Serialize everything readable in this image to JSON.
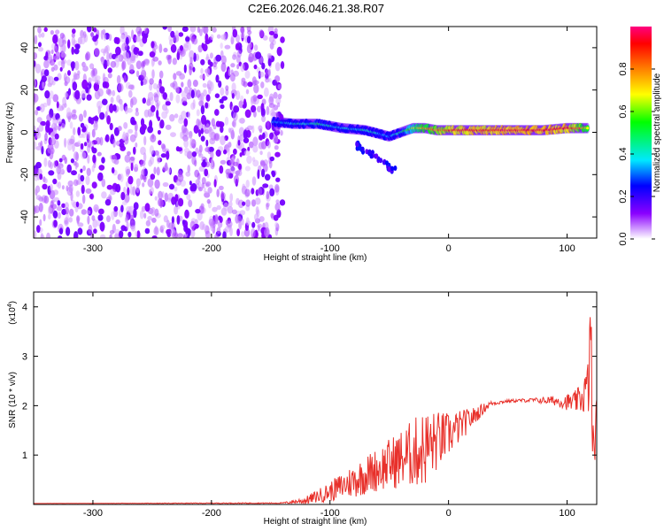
{
  "title": "C2E6.2026.046.21.38.R07",
  "chart_data": [
    {
      "type": "heatmap",
      "name": "spectrogram",
      "xlabel": "Height of straight line (km)",
      "ylabel": "Frequency (Hz)",
      "xlim": [
        -350,
        125
      ],
      "ylim": [
        -50,
        50
      ],
      "xticks": [
        -300,
        -200,
        -100,
        0,
        100
      ],
      "yticks": [
        -40,
        -20,
        0,
        20,
        40
      ],
      "colorbar": {
        "label": "Normalized spectral amplitude",
        "range": [
          0,
          1
        ],
        "ticks": [
          0.0,
          0.2,
          0.4,
          0.6,
          0.8
        ],
        "tick_labels": [
          "0.0",
          "0.2",
          "0.4",
          "0.6",
          "0.8"
        ],
        "colors": [
          "#ffffff",
          "#8a00ff",
          "#0000ff",
          "#00e8ff",
          "#00ff00",
          "#ffff00",
          "#ff8000",
          "#ff0000",
          "#ff0080"
        ]
      },
      "noise_region": {
        "x_from": -350,
        "x_to": -140,
        "amplitude": 0.15
      },
      "signal_track": {
        "x": [
          -148,
          -130,
          -110,
          -90,
          -70,
          -50,
          -40,
          -30,
          -20,
          -10,
          0,
          20,
          50,
          80,
          100,
          118
        ],
        "freq": [
          5,
          4,
          4,
          2,
          1,
          -2,
          0,
          2,
          2,
          1,
          1,
          1,
          1,
          1,
          2,
          2
        ],
        "amplitude": [
          0.3,
          0.4,
          0.45,
          0.35,
          0.4,
          0.3,
          0.45,
          0.6,
          0.75,
          0.8,
          0.85,
          0.9,
          0.92,
          0.92,
          0.9,
          0.7
        ]
      },
      "secondary_track": {
        "x": [
          -80,
          -45
        ],
        "freq": [
          -5,
          -18
        ],
        "amplitude": 0.3
      }
    },
    {
      "type": "line",
      "name": "snr",
      "xlabel": "Height of straight line (km)",
      "ylabel": "SNR (10 * v/v)",
      "scale_label": "(x10",
      "scale_exp": "4",
      "scale_close": ")",
      "xlim": [
        -350,
        125
      ],
      "ylim": [
        0,
        4.3
      ],
      "xticks": [
        -300,
        -200,
        -100,
        0,
        100
      ],
      "yticks": [
        1,
        2,
        3,
        4
      ],
      "series": [
        {
          "name": "SNR",
          "color": "#e8302a",
          "x": [
            -350,
            -140,
            -120,
            -100,
            -80,
            -60,
            -40,
            -20,
            0,
            20,
            35,
            50,
            70,
            90,
            105,
            112,
            118,
            120,
            122,
            125
          ],
          "envelope": [
            0.02,
            0.03,
            0.1,
            0.3,
            0.55,
            0.8,
            1.05,
            1.3,
            1.5,
            1.8,
            2.05,
            2.1,
            2.12,
            2.12,
            2.1,
            2.2,
            2.5,
            3.8,
            1.0,
            2.0
          ],
          "jitter": [
            0.0,
            0.01,
            0.08,
            0.2,
            0.35,
            0.45,
            0.6,
            0.8,
            0.45,
            0.2,
            0.05,
            0.03,
            0.04,
            0.1,
            0.2,
            0.3,
            0.6,
            1.2,
            0.8,
            0.2
          ]
        }
      ]
    }
  ]
}
